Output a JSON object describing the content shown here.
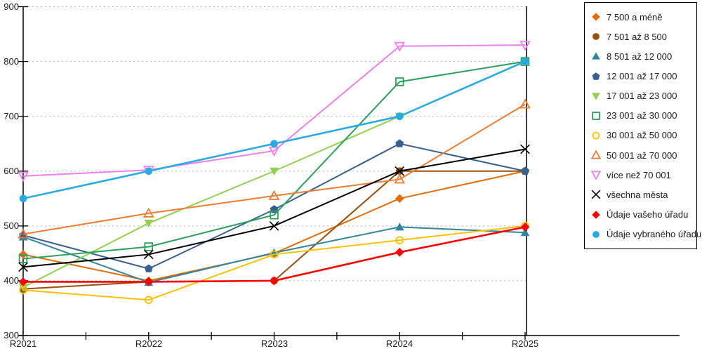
{
  "chart_data": {
    "type": "line",
    "title": "",
    "xlabel": "",
    "ylabel": "",
    "categories": [
      "R2021",
      "R2022",
      "R2023",
      "R2024",
      "R2025"
    ],
    "y_ticks": [
      "900",
      "800",
      "700",
      "600",
      "500",
      "400",
      "300"
    ],
    "ylim": [
      300,
      900
    ],
    "grid": "horizontal-dotted",
    "legend_position": "right-outside",
    "axis_color": "#000000",
    "grid_color": "#b3b3b3",
    "series": [
      {
        "name": "7 500 a méně",
        "color": "#E36C0A",
        "marker": "diamond",
        "values": [
          448,
          400,
          450,
          550,
          600
        ]
      },
      {
        "name": "7 501 až 8 500",
        "color": "#98500A",
        "marker": "circle",
        "values": [
          385,
          398,
          400,
          600,
          600
        ]
      },
      {
        "name": "8 501 až 12 000",
        "color": "#31859C",
        "marker": "triangle-up",
        "values": [
          480,
          397,
          451,
          498,
          488
        ]
      },
      {
        "name": "12 001 až 17 000",
        "color": "#376092",
        "marker": "pentagon",
        "values": [
          483,
          422,
          530,
          650,
          600
        ]
      },
      {
        "name": "17 001 až 23 000",
        "color": "#92D050",
        "marker": "triangle-down",
        "values": [
          388,
          505,
          600,
          700,
          800
        ]
      },
      {
        "name": "23 001 až 30 000",
        "color": "#2BA05A",
        "marker": "square-open",
        "values": [
          440,
          462,
          520,
          763,
          800
        ]
      },
      {
        "name": "30 001 až 50 000",
        "color": "#FFC000",
        "marker": "circle-open",
        "values": [
          383,
          365,
          448,
          474,
          500
        ]
      },
      {
        "name": "50 001 až 70 000",
        "color": "#ED7D31",
        "marker": "triangle-open",
        "values": [
          485,
          523,
          555,
          585,
          722
        ]
      },
      {
        "name": "více než 70 001",
        "color": "#F07EF0",
        "marker": "triangle-down-open",
        "values": [
          591,
          602,
          637,
          828,
          830
        ]
      },
      {
        "name": "všechna města",
        "color": "#000000",
        "marker": "x",
        "values": [
          425,
          448,
          500,
          600,
          640
        ]
      },
      {
        "name": "Údaje vašeho úřadu",
        "color": "#FF0000",
        "marker": "diamond",
        "values": [
          398,
          398,
          400,
          452,
          498
        ]
      },
      {
        "name": "Údaje vybraného úřadu",
        "color": "#29ABE2",
        "marker": "circle",
        "values": [
          550,
          600,
          650,
          700,
          800
        ]
      }
    ]
  }
}
